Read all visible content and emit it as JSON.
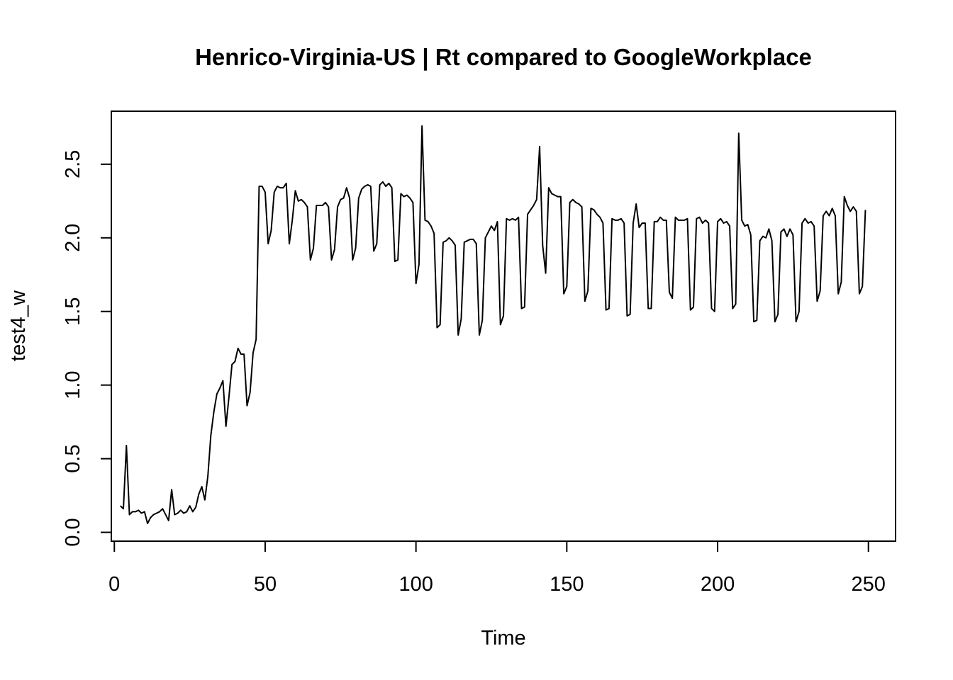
{
  "chart_data": {
    "type": "line",
    "title": "Henrico-Virginia-US | Rt compared to GoogleWorkplace",
    "xlabel": "Time",
    "ylabel": "test4_w",
    "xlim": [
      -1,
      259
    ],
    "ylim": [
      -0.06,
      2.86
    ],
    "x_ticks": [
      0,
      50,
      100,
      150,
      200,
      250
    ],
    "y_ticks": [
      0.0,
      0.5,
      1.0,
      1.5,
      2.0,
      2.5
    ],
    "x_tick_labels": [
      "0",
      "50",
      "100",
      "150",
      "200",
      "250"
    ],
    "y_tick_labels": [
      "0.0",
      "0.5",
      "1.0",
      "1.5",
      "2.0",
      "2.5"
    ],
    "grid": false,
    "legend": "none",
    "line_color": "#000000",
    "x_start": 2,
    "series": [
      {
        "values": [
          0.18,
          0.16,
          0.59,
          0.12,
          0.14,
          0.14,
          0.15,
          0.13,
          0.14,
          0.06,
          0.1,
          0.12,
          0.13,
          0.14,
          0.16,
          0.12,
          0.08,
          0.29,
          0.12,
          0.13,
          0.15,
          0.13,
          0.14,
          0.18,
          0.14,
          0.17,
          0.26,
          0.31,
          0.22,
          0.38,
          0.66,
          0.82,
          0.94,
          0.98,
          1.03,
          0.72,
          0.92,
          1.14,
          1.16,
          1.25,
          1.21,
          1.21,
          0.86,
          0.95,
          1.22,
          1.31,
          2.35,
          2.35,
          2.31,
          1.96,
          2.05,
          2.31,
          2.35,
          2.34,
          2.34,
          2.37,
          1.96,
          2.12,
          2.32,
          2.25,
          2.26,
          2.24,
          2.21,
          1.85,
          1.93,
          2.22,
          2.22,
          2.22,
          2.24,
          2.21,
          1.85,
          1.92,
          2.21,
          2.26,
          2.27,
          2.34,
          2.27,
          1.85,
          1.93,
          2.27,
          2.33,
          2.35,
          2.36,
          2.35,
          1.91,
          1.96,
          2.36,
          2.38,
          2.35,
          2.37,
          2.34,
          1.84,
          1.85,
          2.3,
          2.28,
          2.29,
          2.27,
          2.24,
          1.69,
          1.82,
          2.76,
          2.12,
          2.11,
          2.08,
          2.03,
          1.39,
          1.41,
          1.97,
          1.98,
          2.0,
          1.98,
          1.95,
          1.34,
          1.45,
          1.97,
          1.98,
          1.99,
          1.99,
          1.96,
          1.34,
          1.44,
          2.0,
          2.04,
          2.08,
          2.05,
          2.11,
          1.41,
          1.47,
          2.13,
          2.12,
          2.13,
          2.12,
          2.14,
          1.52,
          1.53,
          2.16,
          2.19,
          2.22,
          2.26,
          2.62,
          1.95,
          1.76,
          2.34,
          2.3,
          2.29,
          2.28,
          2.28,
          1.62,
          1.67,
          2.24,
          2.26,
          2.24,
          2.23,
          2.21,
          1.57,
          1.64,
          2.2,
          2.19,
          2.16,
          2.14,
          2.1,
          1.51,
          1.52,
          2.13,
          2.12,
          2.12,
          2.13,
          2.1,
          1.47,
          1.48,
          2.1,
          2.23,
          2.07,
          2.1,
          2.1,
          1.52,
          1.52,
          2.11,
          2.11,
          2.14,
          2.12,
          2.12,
          1.63,
          1.59,
          2.14,
          2.12,
          2.12,
          2.12,
          2.13,
          1.51,
          1.53,
          2.13,
          2.14,
          2.1,
          2.12,
          2.1,
          1.52,
          1.5,
          2.11,
          2.13,
          2.1,
          2.11,
          2.08,
          1.52,
          1.55,
          2.71,
          2.12,
          2.08,
          2.09,
          2.02,
          1.43,
          1.44,
          1.98,
          2.01,
          2.0,
          2.06,
          1.98,
          1.43,
          1.48,
          2.04,
          2.06,
          2.01,
          2.06,
          2.02,
          1.43,
          1.5,
          2.1,
          2.13,
          2.1,
          2.11,
          2.08,
          1.57,
          1.64,
          2.15,
          2.18,
          2.15,
          2.2,
          2.15,
          1.62,
          1.7,
          2.28,
          2.22,
          2.18,
          2.21,
          2.18,
          1.62,
          1.67,
          2.19
        ]
      }
    ]
  }
}
